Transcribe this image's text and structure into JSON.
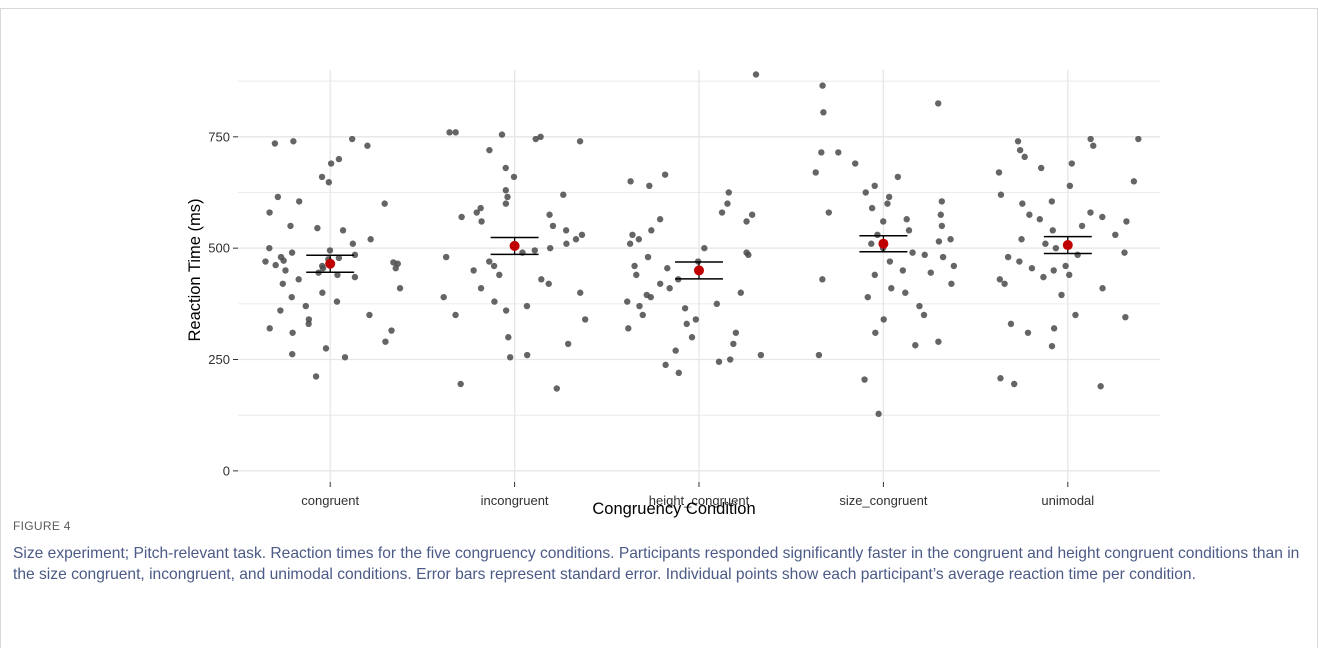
{
  "figure": {
    "label": "FIGURE 4",
    "caption": "Size experiment; Pitch-relevant task. Reaction times for the five congruency conditions. Participants responded significantly faster in the congruent and height congruent conditions than in the size congruent, incongruent, and unimodal conditions. Error bars represent standard error. Individual points show each participant’s average reaction time per condition."
  },
  "chart_data": {
    "type": "scatter",
    "xlabel": "Congruency Condition",
    "ylabel": "Reaction Time (ms)",
    "ylim": [
      -25,
      900
    ],
    "yticks": [
      0,
      250,
      500,
      750
    ],
    "grid": true,
    "categories": [
      "congruent",
      "incongruent",
      "height_congruent",
      "size_congruent",
      "unimodal"
    ],
    "colors": {
      "points": "#4a4a4a",
      "mean": "#c00000",
      "errorbar": "#000000",
      "grid": "#e6e6e6"
    },
    "means": [
      465,
      505,
      450,
      510,
      507
    ],
    "se": [
      19,
      19,
      19,
      18,
      19
    ],
    "points": [
      {
        "category": "congruent",
        "values": [
          648,
          700,
          735,
          740,
          660,
          690,
          580,
          600,
          540,
          545,
          605,
          520,
          510,
          500,
          495,
          490,
          485,
          480,
          478,
          475,
          472,
          470,
          468,
          465,
          462,
          460,
          455,
          450,
          445,
          440,
          435,
          430,
          420,
          410,
          400,
          390,
          380,
          370,
          360,
          350,
          340,
          330,
          320,
          315,
          310,
          290,
          275,
          262,
          255,
          212,
          730,
          745,
          615,
          550,
          455
        ]
      },
      {
        "category": "incongruent",
        "values": [
          760,
          760,
          755,
          750,
          745,
          740,
          720,
          680,
          660,
          630,
          620,
          615,
          600,
          590,
          580,
          575,
          570,
          560,
          550,
          540,
          530,
          520,
          510,
          500,
          495,
          490,
          480,
          470,
          460,
          450,
          440,
          430,
          420,
          410,
          400,
          390,
          380,
          370,
          360,
          350,
          340,
          300,
          285,
          260,
          255,
          195,
          185
        ]
      },
      {
        "category": "height_congruent",
        "values": [
          890,
          665,
          650,
          640,
          625,
          600,
          580,
          575,
          565,
          560,
          540,
          530,
          520,
          510,
          500,
          490,
          485,
          480,
          470,
          460,
          455,
          450,
          440,
          430,
          420,
          410,
          400,
          395,
          390,
          380,
          375,
          370,
          365,
          350,
          340,
          330,
          320,
          310,
          300,
          285,
          270,
          260,
          250,
          245,
          238,
          220
        ]
      },
      {
        "category": "size_congruent",
        "values": [
          865,
          825,
          805,
          715,
          715,
          690,
          670,
          660,
          640,
          625,
          615,
          605,
          600,
          590,
          580,
          575,
          565,
          560,
          550,
          540,
          530,
          520,
          515,
          510,
          500,
          490,
          485,
          480,
          470,
          460,
          450,
          445,
          440,
          430,
          420,
          410,
          400,
          390,
          370,
          350,
          340,
          310,
          290,
          282,
          260,
          205,
          128
        ]
      },
      {
        "category": "unimodal",
        "values": [
          745,
          745,
          740,
          730,
          720,
          705,
          690,
          680,
          670,
          650,
          640,
          620,
          605,
          600,
          580,
          575,
          570,
          565,
          560,
          550,
          540,
          530,
          520,
          510,
          500,
          490,
          485,
          480,
          470,
          460,
          455,
          450,
          440,
          435,
          430,
          420,
          410,
          395,
          350,
          345,
          330,
          320,
          310,
          280,
          208,
          195,
          190
        ]
      }
    ]
  }
}
